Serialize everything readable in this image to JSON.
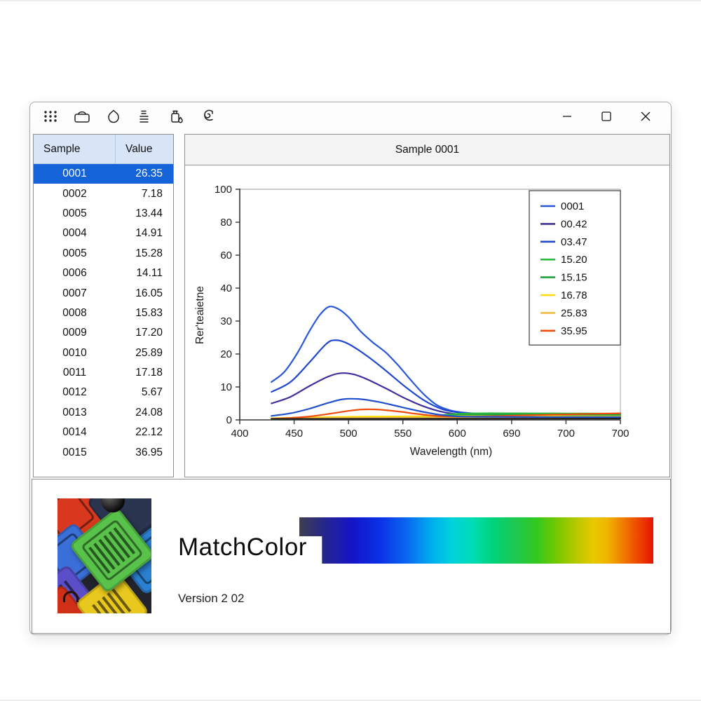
{
  "window": {
    "toolbar_icons": [
      "grid-dots",
      "paint-can",
      "droplet",
      "sample-list",
      "dye-bottle",
      "pick-tool"
    ],
    "controls": {
      "minimize": "minimize",
      "maximize": "maximize",
      "close": "close"
    }
  },
  "table": {
    "headers": {
      "sample": "Sample",
      "value": "Value"
    },
    "selected_index": 0,
    "selected_bg": "#1463d8",
    "header_bg": "#d7e5f6",
    "rows": [
      {
        "sample": "0001",
        "value": "26.35"
      },
      {
        "sample": "0002",
        "value": "7.18"
      },
      {
        "sample": "0005",
        "value": "13.44"
      },
      {
        "sample": "0004",
        "value": "14.91"
      },
      {
        "sample": "0005",
        "value": "15.28"
      },
      {
        "sample": "0006",
        "value": "14.11"
      },
      {
        "sample": "0007",
        "value": "16.05"
      },
      {
        "sample": "0008",
        "value": "15.83"
      },
      {
        "sample": "0009",
        "value": "17.20"
      },
      {
        "sample": "0010",
        "value": "25.89"
      },
      {
        "sample": "0011",
        "value": "17.18"
      },
      {
        "sample": "0012",
        "value": "5.67"
      },
      {
        "sample": "0013",
        "value": "24.08"
      },
      {
        "sample": "0014",
        "value": "22.12"
      },
      {
        "sample": "0015",
        "value": "36.95"
      }
    ]
  },
  "chart_data": {
    "type": "line",
    "title": "Sample 0001",
    "xlabel": "Wavelength (nm)",
    "ylabel": "Rer'teaietne",
    "x_tick_labels": [
      "400",
      "450",
      "500",
      "550",
      "600",
      "690",
      "700",
      "700"
    ],
    "y_tick_labels": [
      "0",
      "10",
      "20",
      "30",
      "40",
      "60",
      "80",
      "100"
    ],
    "y_tick_values": [
      0,
      10,
      20,
      30,
      40,
      60,
      80,
      100
    ],
    "x_range": [
      400,
      700
    ],
    "grid": false,
    "legend_position": "top-right",
    "series": [
      {
        "name": "0001",
        "color": "#2857d8",
        "in_legend": true,
        "points": [
          [
            425,
            11.5
          ],
          [
            435,
            14.5
          ],
          [
            445,
            20
          ],
          [
            455,
            27
          ],
          [
            463,
            31.8
          ],
          [
            470,
            34.3
          ],
          [
            477,
            33.8
          ],
          [
            485,
            31.5
          ],
          [
            495,
            27
          ],
          [
            505,
            23.5
          ],
          [
            515,
            20.5
          ],
          [
            525,
            16.5
          ],
          [
            535,
            12
          ],
          [
            545,
            7.8
          ],
          [
            555,
            4.6
          ],
          [
            565,
            3
          ],
          [
            575,
            2.3
          ],
          [
            590,
            1.9
          ],
          [
            620,
            1.8
          ],
          [
            660,
            1.8
          ],
          [
            700,
            1.8
          ]
        ]
      },
      {
        "name": "00.42",
        "color": "#3d2f9e",
        "in_legend": true,
        "points": [
          [
            425,
            5
          ],
          [
            440,
            7
          ],
          [
            455,
            10.3
          ],
          [
            470,
            13.2
          ],
          [
            480,
            14.2
          ],
          [
            490,
            13.8
          ],
          [
            500,
            12.4
          ],
          [
            515,
            9.6
          ],
          [
            530,
            6.6
          ],
          [
            545,
            4.1
          ],
          [
            560,
            2.4
          ],
          [
            575,
            1.6
          ],
          [
            590,
            1.3
          ],
          [
            620,
            1.15
          ],
          [
            660,
            1.1
          ],
          [
            700,
            1.1
          ]
        ]
      },
      {
        "name": "03.47",
        "color": "#1f47d0",
        "in_legend": true,
        "points": [
          [
            425,
            8.5
          ],
          [
            440,
            11.5
          ],
          [
            455,
            17.5
          ],
          [
            468,
            23
          ],
          [
            475,
            24.2
          ],
          [
            485,
            23.2
          ],
          [
            500,
            19.5
          ],
          [
            515,
            15
          ],
          [
            530,
            10.2
          ],
          [
            545,
            6
          ],
          [
            560,
            3.2
          ],
          [
            575,
            2.1
          ],
          [
            590,
            1.7
          ],
          [
            620,
            1.55
          ],
          [
            660,
            1.5
          ],
          [
            700,
            1.5
          ]
        ]
      },
      {
        "name": "15.20",
        "color": "#2db83d",
        "in_legend": true,
        "points": [
          [
            425,
            0.35
          ],
          [
            475,
            0.45
          ],
          [
            525,
            0.7
          ],
          [
            550,
            1.2
          ],
          [
            570,
            1.8
          ],
          [
            590,
            2.0
          ],
          [
            620,
            2.0
          ],
          [
            660,
            1.95
          ],
          [
            700,
            1.9
          ]
        ]
      },
      {
        "name": "15.15",
        "color": "#1ea43c",
        "in_legend": true,
        "points": [
          [
            425,
            0.25
          ],
          [
            475,
            0.35
          ],
          [
            525,
            0.55
          ],
          [
            550,
            0.9
          ],
          [
            570,
            1.4
          ],
          [
            590,
            1.6
          ],
          [
            620,
            1.6
          ],
          [
            660,
            1.55
          ],
          [
            700,
            1.5
          ]
        ]
      },
      {
        "name": "16.78",
        "color": "#ffdd0a",
        "in_legend": true,
        "points": [
          [
            425,
            0.5
          ],
          [
            455,
            0.75
          ],
          [
            485,
            0.95
          ],
          [
            515,
            1.05
          ],
          [
            545,
            1.1
          ],
          [
            575,
            1.15
          ],
          [
            620,
            1.15
          ],
          [
            660,
            1.1
          ],
          [
            700,
            1.05
          ]
        ]
      },
      {
        "name": "25.83",
        "color": "#f5b942",
        "in_legend": true,
        "points": [
          [
            425,
            0.4
          ],
          [
            475,
            0.55
          ],
          [
            525,
            0.65
          ],
          [
            575,
            0.7
          ],
          [
            620,
            0.72
          ],
          [
            660,
            0.72
          ],
          [
            700,
            0.72
          ]
        ]
      },
      {
        "name": "35.95",
        "color": "#ee4d0e",
        "in_legend": true,
        "points": [
          [
            425,
            0.35
          ],
          [
            440,
            0.6
          ],
          [
            455,
            1.05
          ],
          [
            470,
            1.8
          ],
          [
            485,
            2.7
          ],
          [
            498,
            3.2
          ],
          [
            510,
            3.1
          ],
          [
            525,
            2.55
          ],
          [
            540,
            1.8
          ],
          [
            555,
            1.2
          ],
          [
            570,
            1.0
          ],
          [
            590,
            1.05
          ],
          [
            620,
            1.35
          ],
          [
            660,
            1.7
          ],
          [
            700,
            2.0
          ]
        ]
      },
      {
        "name": "",
        "color": "#2150cc",
        "in_legend": false,
        "points": [
          [
            425,
            1.2
          ],
          [
            440,
            2.0
          ],
          [
            455,
            3.4
          ],
          [
            470,
            5.2
          ],
          [
            482,
            6.3
          ],
          [
            495,
            6.3
          ],
          [
            510,
            5.4
          ],
          [
            525,
            4.1
          ],
          [
            540,
            2.8
          ],
          [
            555,
            1.7
          ],
          [
            570,
            1.1
          ],
          [
            590,
            0.95
          ],
          [
            620,
            0.9
          ],
          [
            660,
            0.85
          ],
          [
            700,
            0.85
          ]
        ]
      },
      {
        "name": "",
        "color": "#222222",
        "in_legend": false,
        "points": [
          [
            425,
            0.3
          ],
          [
            700,
            0.4
          ]
        ]
      }
    ]
  },
  "footer": {
    "app_name": "MatchColor",
    "version": "Version 2 02",
    "spectrum_stops": [
      "#3e3e50 0%",
      "#26268c 7%",
      "#1414c8 15%",
      "#0a32e6 23%",
      "#0a64f0 30%",
      "#00aaf0 37%",
      "#00d2dc 43%",
      "#00dcb4 49%",
      "#00d278 55%",
      "#1ec850 61%",
      "#32c81e 67%",
      "#78c800 73%",
      "#b4c800 78%",
      "#e8c800 83%",
      "#f0b400 87%",
      "#f08200 91%",
      "#ee5000 95%",
      "#e61400 100%"
    ]
  }
}
